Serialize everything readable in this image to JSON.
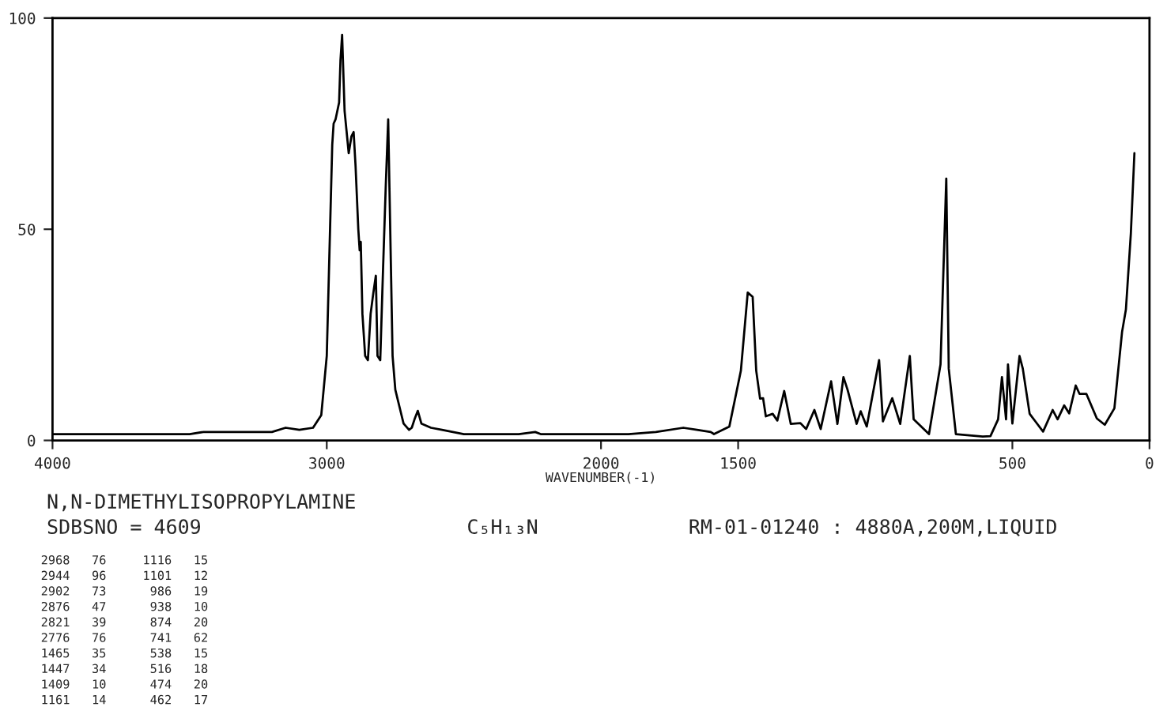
{
  "chart_data": {
    "type": "line",
    "title": "N,N-DIMETHYLISOPROPYLAMINE",
    "xlabel": "WAVENUMBER(-1)",
    "x": [
      4000,
      3500,
      3450,
      3200,
      3150,
      3100,
      3050,
      3020,
      3000,
      2990,
      2980,
      2975,
      2968,
      2955,
      2950,
      2944,
      2940,
      2935,
      2920,
      2910,
      2902,
      2895,
      2885,
      2880,
      2876,
      2870,
      2860,
      2850,
      2840,
      2830,
      2821,
      2815,
      2805,
      2795,
      2785,
      2776,
      2770,
      2760,
      2750,
      2735,
      2720,
      2700,
      2690,
      2680,
      2668,
      2655,
      2620,
      2580,
      2500,
      2400,
      2300,
      2240,
      2220,
      2100,
      2000,
      1900,
      1800,
      1700,
      1650,
      1600,
      1588,
      1532,
      1490,
      1465,
      1447,
      1434,
      1420,
      1409,
      1399,
      1374,
      1357,
      1332,
      1308,
      1273,
      1252,
      1222,
      1199,
      1161,
      1138,
      1116,
      1101,
      1068,
      1053,
      1031,
      986,
      972,
      938,
      909,
      874,
      860,
      804,
      762,
      741,
      732,
      706,
      608,
      580,
      552,
      538,
      523,
      516,
      500,
      474,
      462,
      437,
      416,
      388,
      353,
      335,
      311,
      293,
      269,
      255,
      230,
      192,
      163,
      128,
      100,
      86,
      68,
      55
    ],
    "series": [
      {
        "color": "#000000",
        "values": [
          1.5,
          1.5,
          2,
          2,
          3,
          2.5,
          3,
          6,
          20,
          45,
          70,
          75,
          76,
          80,
          90,
          96,
          88,
          78,
          68,
          72,
          73,
          65,
          50,
          45,
          47,
          30,
          20,
          19,
          30,
          35,
          39,
          20,
          19,
          40,
          60,
          76,
          55,
          20,
          12,
          8,
          4,
          2.5,
          3,
          5,
          7,
          4,
          3,
          2.5,
          1.5,
          1.5,
          1.5,
          2,
          1.5,
          1.5,
          1.5,
          1.5,
          2,
          3,
          2.5,
          2,
          1.5,
          3.3,
          16.5,
          35,
          34,
          16.5,
          9.9,
          10,
          5.7,
          6.3,
          4.7,
          11.7,
          3.9,
          4.1,
          2.7,
          7.2,
          2.7,
          14,
          3.9,
          15,
          12,
          3.9,
          6.9,
          3.3,
          19,
          4.5,
          10,
          3.9,
          20,
          5,
          1.5,
          18,
          62,
          17,
          1.5,
          0.9,
          1,
          5,
          15,
          5,
          18,
          4,
          20,
          17,
          6.3,
          4.5,
          2.1,
          7.2,
          5,
          8.3,
          6.4,
          13,
          11,
          11,
          5.2,
          3.7,
          7.6,
          25.7,
          31,
          49,
          68
        ]
      }
    ],
    "xlim": [
      4000,
      0
    ],
    "xticks": [
      4000,
      3000,
      2000,
      1500,
      500,
      0
    ],
    "ylim": [
      0,
      100
    ],
    "yticks": [
      0,
      50,
      100
    ],
    "grid": false,
    "legend": false,
    "annotations": [
      "SDBSNO = 4609",
      "C₅H₁₃N",
      "RM-01-01240 : 4880A,200M,LIQUID",
      "2968   76     1116   15",
      "2944   96     1101   12",
      "2902   73      986   19",
      "2876   47      938   10",
      "2821   39      874   20",
      "2776   76      741   62",
      "1465   35      538   15",
      "1447   34      516   18",
      "1409   10      474   20",
      "1161   14      462   17"
    ]
  }
}
